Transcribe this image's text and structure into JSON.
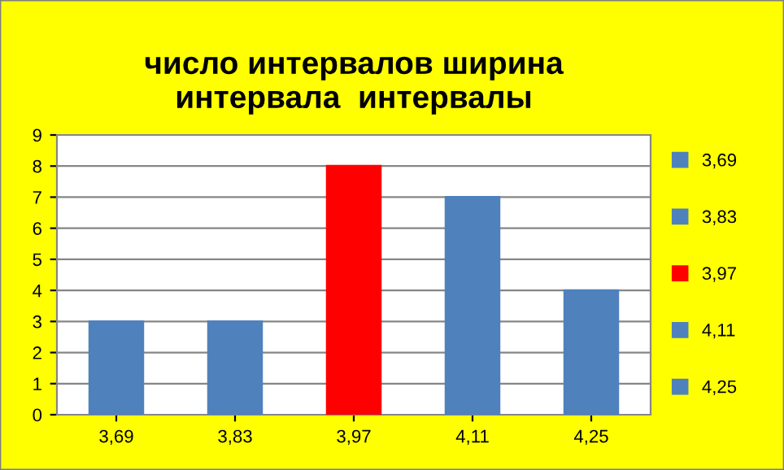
{
  "chart_data": {
    "type": "bar",
    "title": "число интервалов ширина\nинтервала  интервалы",
    "categories": [
      "3,69",
      "3,83",
      "3,97",
      "4,11",
      "4,25"
    ],
    "series": [
      {
        "name": "3,69",
        "color": "#4f81bd",
        "values": [
          3,
          null,
          null,
          null,
          null
        ]
      },
      {
        "name": "3,83",
        "color": "#4f81bd",
        "values": [
          null,
          3,
          null,
          null,
          null
        ]
      },
      {
        "name": "3,97",
        "color": "#ff0000",
        "values": [
          null,
          null,
          8,
          null,
          null
        ]
      },
      {
        "name": "4,11",
        "color": "#4f81bd",
        "values": [
          null,
          null,
          null,
          7,
          null
        ]
      },
      {
        "name": "4,25",
        "color": "#4f81bd",
        "values": [
          null,
          null,
          null,
          null,
          4
        ]
      }
    ],
    "ylim": [
      0,
      9
    ],
    "yticks": [
      0,
      1,
      2,
      3,
      4,
      5,
      6,
      7,
      8,
      9
    ],
    "grid": "y",
    "legend": "right"
  }
}
